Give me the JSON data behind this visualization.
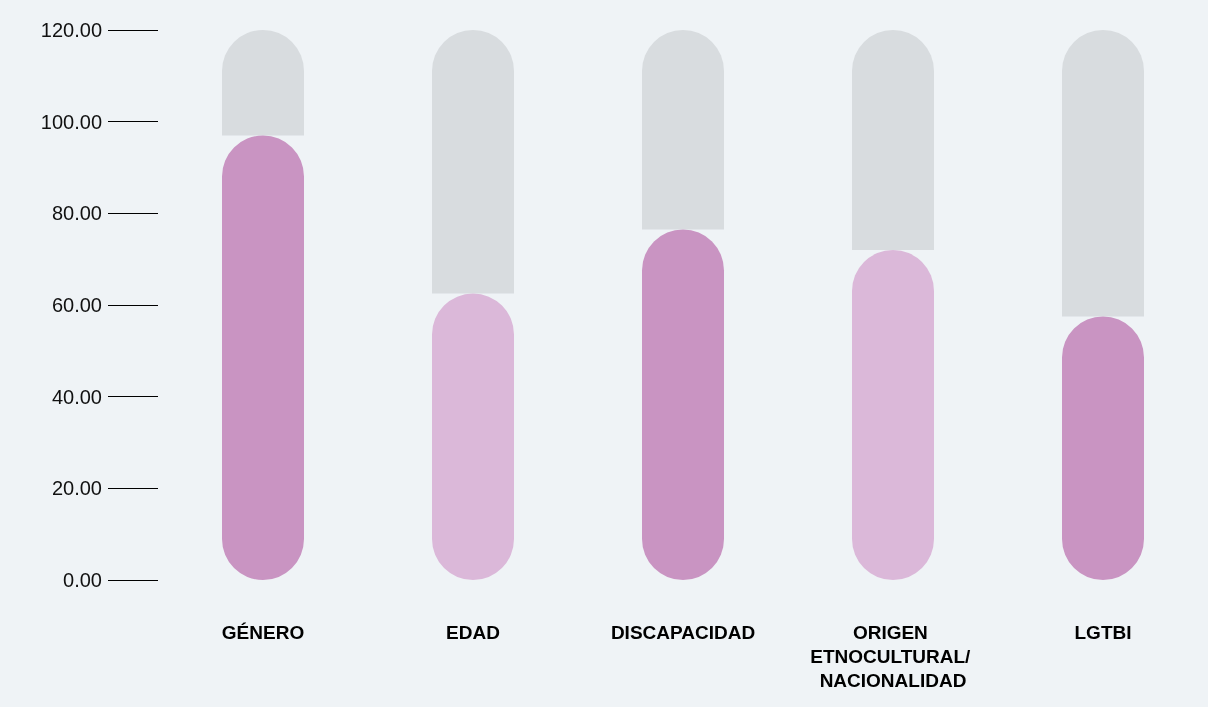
{
  "chart_data": {
    "type": "bar",
    "categories": [
      "GÉNERO",
      "EDAD",
      "DISCAPACIDAD",
      "ORIGEN ETNOCULTURAL/ NACIONALIDAD",
      "LGTBI"
    ],
    "series": [
      {
        "colors": [
          "#c994c2",
          "#dbb8d9",
          "#c994c2",
          "#dbb8d9",
          "#c994c2"
        ],
        "values": [
          97,
          62.5,
          76.5,
          72,
          57.5
        ]
      },
      {
        "color": "#d8dcdf",
        "values": [
          23,
          57.5,
          43.5,
          48,
          62.5
        ]
      }
    ],
    "stacked": true,
    "ylim": [
      0,
      120
    ],
    "yticks": [
      {
        "value": 0,
        "label": "0.00"
      },
      {
        "value": 20,
        "label": "20.00"
      },
      {
        "value": 40,
        "label": "40.00"
      },
      {
        "value": 60,
        "label": "60.00"
      },
      {
        "value": 80,
        "label": "80.00"
      },
      {
        "value": 100,
        "label": "100.00"
      },
      {
        "value": 120,
        "label": "120.00"
      }
    ],
    "grid": false
  }
}
